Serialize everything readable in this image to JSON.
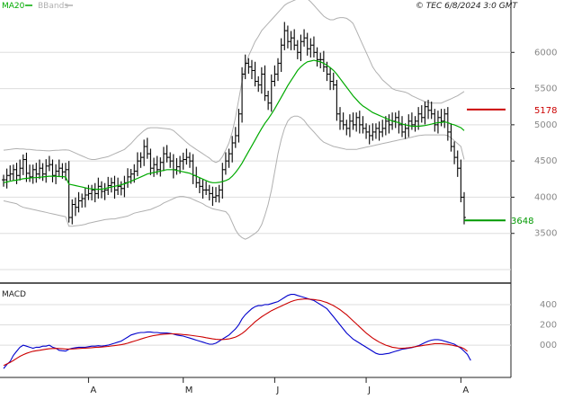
{
  "header": {
    "legend_ma": "MA20",
    "legend_bb": "BBands",
    "copyright": "© TEC 6/8/2024 3:0 GMT",
    "colors": {
      "ma": "#00aa00",
      "bb": "#b0b0b0"
    }
  },
  "chart_data": [
    {
      "type": "ohlc",
      "series": [
        {
          "name": "MA20",
          "color": "#00aa00"
        },
        {
          "name": "BBands",
          "color": "#b0b0b0"
        }
      ],
      "x_ticks": [
        "A",
        "M",
        "J",
        "J",
        "A"
      ],
      "y_ticks": [
        "6000",
        "5500",
        "5000",
        "4500",
        "4000",
        "3500"
      ],
      "ylim": [
        3000,
        6500
      ],
      "levels": [
        {
          "label": "5178",
          "value": 5210,
          "color": "#cc0000"
        },
        {
          "label": "3648",
          "value": 3680,
          "color": "#009900"
        }
      ],
      "close": [
        4240,
        4300,
        4320,
        4380,
        4300,
        4400,
        4520,
        4330,
        4280,
        4380,
        4320,
        4400,
        4320,
        4430,
        4450,
        4300,
        4360,
        4400,
        4350,
        4380,
        3720,
        3900,
        3860,
        3950,
        3980,
        4030,
        4050,
        4100,
        4050,
        4150,
        4080,
        4100,
        4160,
        4200,
        4100,
        4150,
        4120,
        4200,
        4280,
        4320,
        4360,
        4500,
        4550,
        4700,
        4600,
        4400,
        4450,
        4380,
        4480,
        4600,
        4550,
        4500,
        4380,
        4420,
        4500,
        4520,
        4550,
        4500,
        4300,
        4200,
        4150,
        4100,
        4100,
        4050,
        4000,
        4020,
        4100,
        4380,
        4500,
        4600,
        4750,
        4850,
        5150,
        5700,
        5850,
        5800,
        5750,
        5600,
        5550,
        5700,
        5400,
        5300,
        5600,
        5700,
        5850,
        6100,
        6300,
        6150,
        6200,
        6100,
        6000,
        6150,
        6200,
        6050,
        6100,
        6000,
        5900,
        5900,
        5800,
        5700,
        5600,
        5550,
        5150,
        5050,
        5000,
        4950,
        5050,
        5000,
        5100,
        5000,
        4950,
        4900,
        4850,
        4900,
        4950,
        4900,
        4950,
        5050,
        5000,
        5050,
        5100,
        5000,
        4900,
        4950,
        5050,
        5000,
        5050,
        5150,
        5100,
        5250,
        5200,
        5150,
        5000,
        5100,
        5050,
        5150,
        4900,
        4700,
        4550,
        4400,
        4000,
        3720
      ],
      "ma20": [
        4200,
        4210,
        4220,
        4230,
        4235,
        4245,
        4255,
        4260,
        4265,
        4270,
        4270,
        4275,
        4280,
        4285,
        4290,
        4290,
        4290,
        4285,
        4285,
        4280,
        4180,
        4170,
        4160,
        4150,
        4140,
        4130,
        4120,
        4115,
        4110,
        4110,
        4110,
        4120,
        4130,
        4140,
        4150,
        4160,
        4170,
        4185,
        4200,
        4220,
        4240,
        4260,
        4280,
        4300,
        4320,
        4330,
        4340,
        4350,
        4360,
        4370,
        4380,
        4380,
        4380,
        4370,
        4360,
        4350,
        4340,
        4330,
        4310,
        4290,
        4270,
        4250,
        4230,
        4210,
        4200,
        4200,
        4205,
        4215,
        4230,
        4250,
        4290,
        4340,
        4400,
        4470,
        4550,
        4630,
        4710,
        4790,
        4870,
        4950,
        5020,
        5080,
        5150,
        5220,
        5300,
        5380,
        5460,
        5540,
        5610,
        5680,
        5750,
        5800,
        5840,
        5870,
        5880,
        5890,
        5880,
        5870,
        5850,
        5820,
        5790,
        5750,
        5700,
        5640,
        5580,
        5520,
        5460,
        5400,
        5350,
        5300,
        5260,
        5230,
        5200,
        5170,
        5150,
        5130,
        5110,
        5090,
        5070,
        5050,
        5040,
        5030,
        5010,
        5000,
        4990,
        4980,
        4980,
        4980,
        4985,
        4990,
        5000,
        5010,
        5020,
        5030,
        5030,
        5040,
        5030,
        5010,
        5000,
        4980,
        4960,
        4920
      ],
      "bb_upper": [
        4650,
        4655,
        4660,
        4665,
        4670,
        4665,
        4665,
        4660,
        4660,
        4655,
        4650,
        4648,
        4645,
        4642,
        4640,
        4645,
        4648,
        4650,
        4652,
        4655,
        4650,
        4630,
        4610,
        4590,
        4570,
        4550,
        4530,
        4520,
        4520,
        4530,
        4540,
        4550,
        4560,
        4580,
        4600,
        4620,
        4640,
        4660,
        4700,
        4740,
        4790,
        4840,
        4880,
        4920,
        4950,
        4960,
        4960,
        4960,
        4955,
        4950,
        4945,
        4940,
        4920,
        4880,
        4840,
        4800,
        4760,
        4720,
        4690,
        4660,
        4630,
        4600,
        4570,
        4540,
        4500,
        4480,
        4500,
        4560,
        4650,
        4750,
        4900,
        5100,
        5350,
        5600,
        5800,
        5950,
        6050,
        6150,
        6220,
        6300,
        6350,
        6400,
        6450,
        6500,
        6550,
        6600,
        6650,
        6680,
        6700,
        6720,
        6740,
        6750,
        6760,
        6740,
        6700,
        6650,
        6600,
        6550,
        6500,
        6470,
        6450,
        6450,
        6470,
        6480,
        6480,
        6470,
        6440,
        6400,
        6300,
        6200,
        6100,
        6000,
        5900,
        5800,
        5730,
        5680,
        5620,
        5580,
        5540,
        5500,
        5480,
        5470,
        5460,
        5450,
        5430,
        5400,
        5380,
        5360,
        5340,
        5320,
        5310,
        5300,
        5300,
        5300,
        5300,
        5320,
        5340,
        5360,
        5380,
        5400,
        5430,
        5460
      ],
      "bb_lower": [
        3950,
        3940,
        3930,
        3920,
        3910,
        3880,
        3860,
        3850,
        3840,
        3830,
        3820,
        3810,
        3800,
        3790,
        3780,
        3770,
        3760,
        3750,
        3740,
        3730,
        3600,
        3600,
        3605,
        3610,
        3615,
        3625,
        3640,
        3650,
        3660,
        3670,
        3680,
        3690,
        3695,
        3700,
        3700,
        3710,
        3720,
        3730,
        3740,
        3760,
        3780,
        3790,
        3800,
        3810,
        3820,
        3830,
        3850,
        3870,
        3890,
        3920,
        3940,
        3960,
        3980,
        4000,
        4010,
        4010,
        4000,
        3990,
        3970,
        3950,
        3930,
        3910,
        3880,
        3860,
        3840,
        3830,
        3820,
        3810,
        3800,
        3750,
        3650,
        3550,
        3480,
        3440,
        3420,
        3440,
        3470,
        3500,
        3540,
        3620,
        3750,
        3900,
        4100,
        4350,
        4600,
        4800,
        4950,
        5050,
        5100,
        5120,
        5120,
        5100,
        5060,
        5000,
        4950,
        4900,
        4850,
        4800,
        4760,
        4740,
        4720,
        4700,
        4690,
        4680,
        4670,
        4660,
        4660,
        4660,
        4660,
        4670,
        4680,
        4690,
        4700,
        4710,
        4720,
        4730,
        4740,
        4750,
        4760,
        4770,
        4780,
        4790,
        4800,
        4810,
        4820,
        4830,
        4840,
        4850,
        4855,
        4860,
        4860,
        4860,
        4860,
        4860,
        4860,
        4860,
        4850,
        4820,
        4780,
        4740,
        4700,
        4520
      ]
    },
    {
      "type": "line",
      "title": "MACD",
      "y_ticks": [
        "400",
        "200",
        "000"
      ],
      "ylim": [
        -300,
        550
      ],
      "series": [
        {
          "name": "",
          "color": "#0000cc",
          "values": [
            -230,
            -190,
            -160,
            -100,
            -60,
            -20,
            0,
            -10,
            -20,
            -30,
            -20,
            -20,
            -10,
            -10,
            0,
            -20,
            -30,
            -50,
            -55,
            -58,
            -40,
            -30,
            -25,
            -20,
            -20,
            -20,
            -15,
            -10,
            -10,
            -5,
            -10,
            -5,
            0,
            10,
            20,
            30,
            40,
            60,
            80,
            100,
            110,
            120,
            125,
            125,
            130,
            130,
            125,
            125,
            120,
            120,
            120,
            115,
            110,
            100,
            95,
            90,
            80,
            70,
            60,
            50,
            40,
            30,
            20,
            10,
            10,
            20,
            40,
            60,
            80,
            100,
            130,
            160,
            200,
            260,
            300,
            330,
            360,
            380,
            390,
            390,
            400,
            400,
            410,
            420,
            430,
            450,
            470,
            490,
            500,
            500,
            490,
            480,
            470,
            460,
            450,
            440,
            420,
            400,
            380,
            360,
            320,
            280,
            240,
            200,
            160,
            120,
            90,
            60,
            40,
            20,
            0,
            -20,
            -40,
            -60,
            -80,
            -90,
            -90,
            -85,
            -80,
            -70,
            -60,
            -50,
            -40,
            -35,
            -30,
            -25,
            -15,
            -5,
            10,
            25,
            40,
            50,
            55,
            55,
            50,
            40,
            30,
            20,
            10,
            -10,
            -30,
            -60,
            -90,
            -150
          ]
        },
        {
          "name": "",
          "color": "#cc0000",
          "values": [
            -200,
            -185,
            -170,
            -150,
            -130,
            -110,
            -95,
            -80,
            -70,
            -60,
            -55,
            -50,
            -45,
            -40,
            -35,
            -33,
            -32,
            -33,
            -35,
            -38,
            -38,
            -37,
            -35,
            -33,
            -31,
            -29,
            -27,
            -25,
            -22,
            -20,
            -18,
            -15,
            -12,
            -8,
            -4,
            0,
            5,
            12,
            20,
            30,
            40,
            50,
            60,
            70,
            80,
            88,
            95,
            100,
            105,
            108,
            110,
            112,
            112,
            110,
            108,
            105,
            102,
            98,
            94,
            90,
            85,
            80,
            74,
            68,
            62,
            58,
            56,
            56,
            58,
            62,
            70,
            80,
            95,
            115,
            140,
            170,
            200,
            230,
            255,
            280,
            300,
            320,
            340,
            355,
            370,
            385,
            400,
            415,
            430,
            440,
            448,
            452,
            455,
            455,
            453,
            450,
            445,
            440,
            430,
            420,
            405,
            390,
            370,
            350,
            325,
            300,
            270,
            240,
            210,
            180,
            150,
            120,
            95,
            70,
            50,
            30,
            15,
            0,
            -10,
            -20,
            -25,
            -30,
            -30,
            -28,
            -25,
            -20,
            -15,
            -10,
            -5,
            0,
            5,
            10,
            15,
            15,
            15,
            12,
            8,
            2,
            -5,
            -12,
            -20,
            -35,
            -60
          ]
        }
      ],
      "x_ticks": [
        "A",
        "M",
        "J",
        "J",
        "A"
      ]
    }
  ]
}
